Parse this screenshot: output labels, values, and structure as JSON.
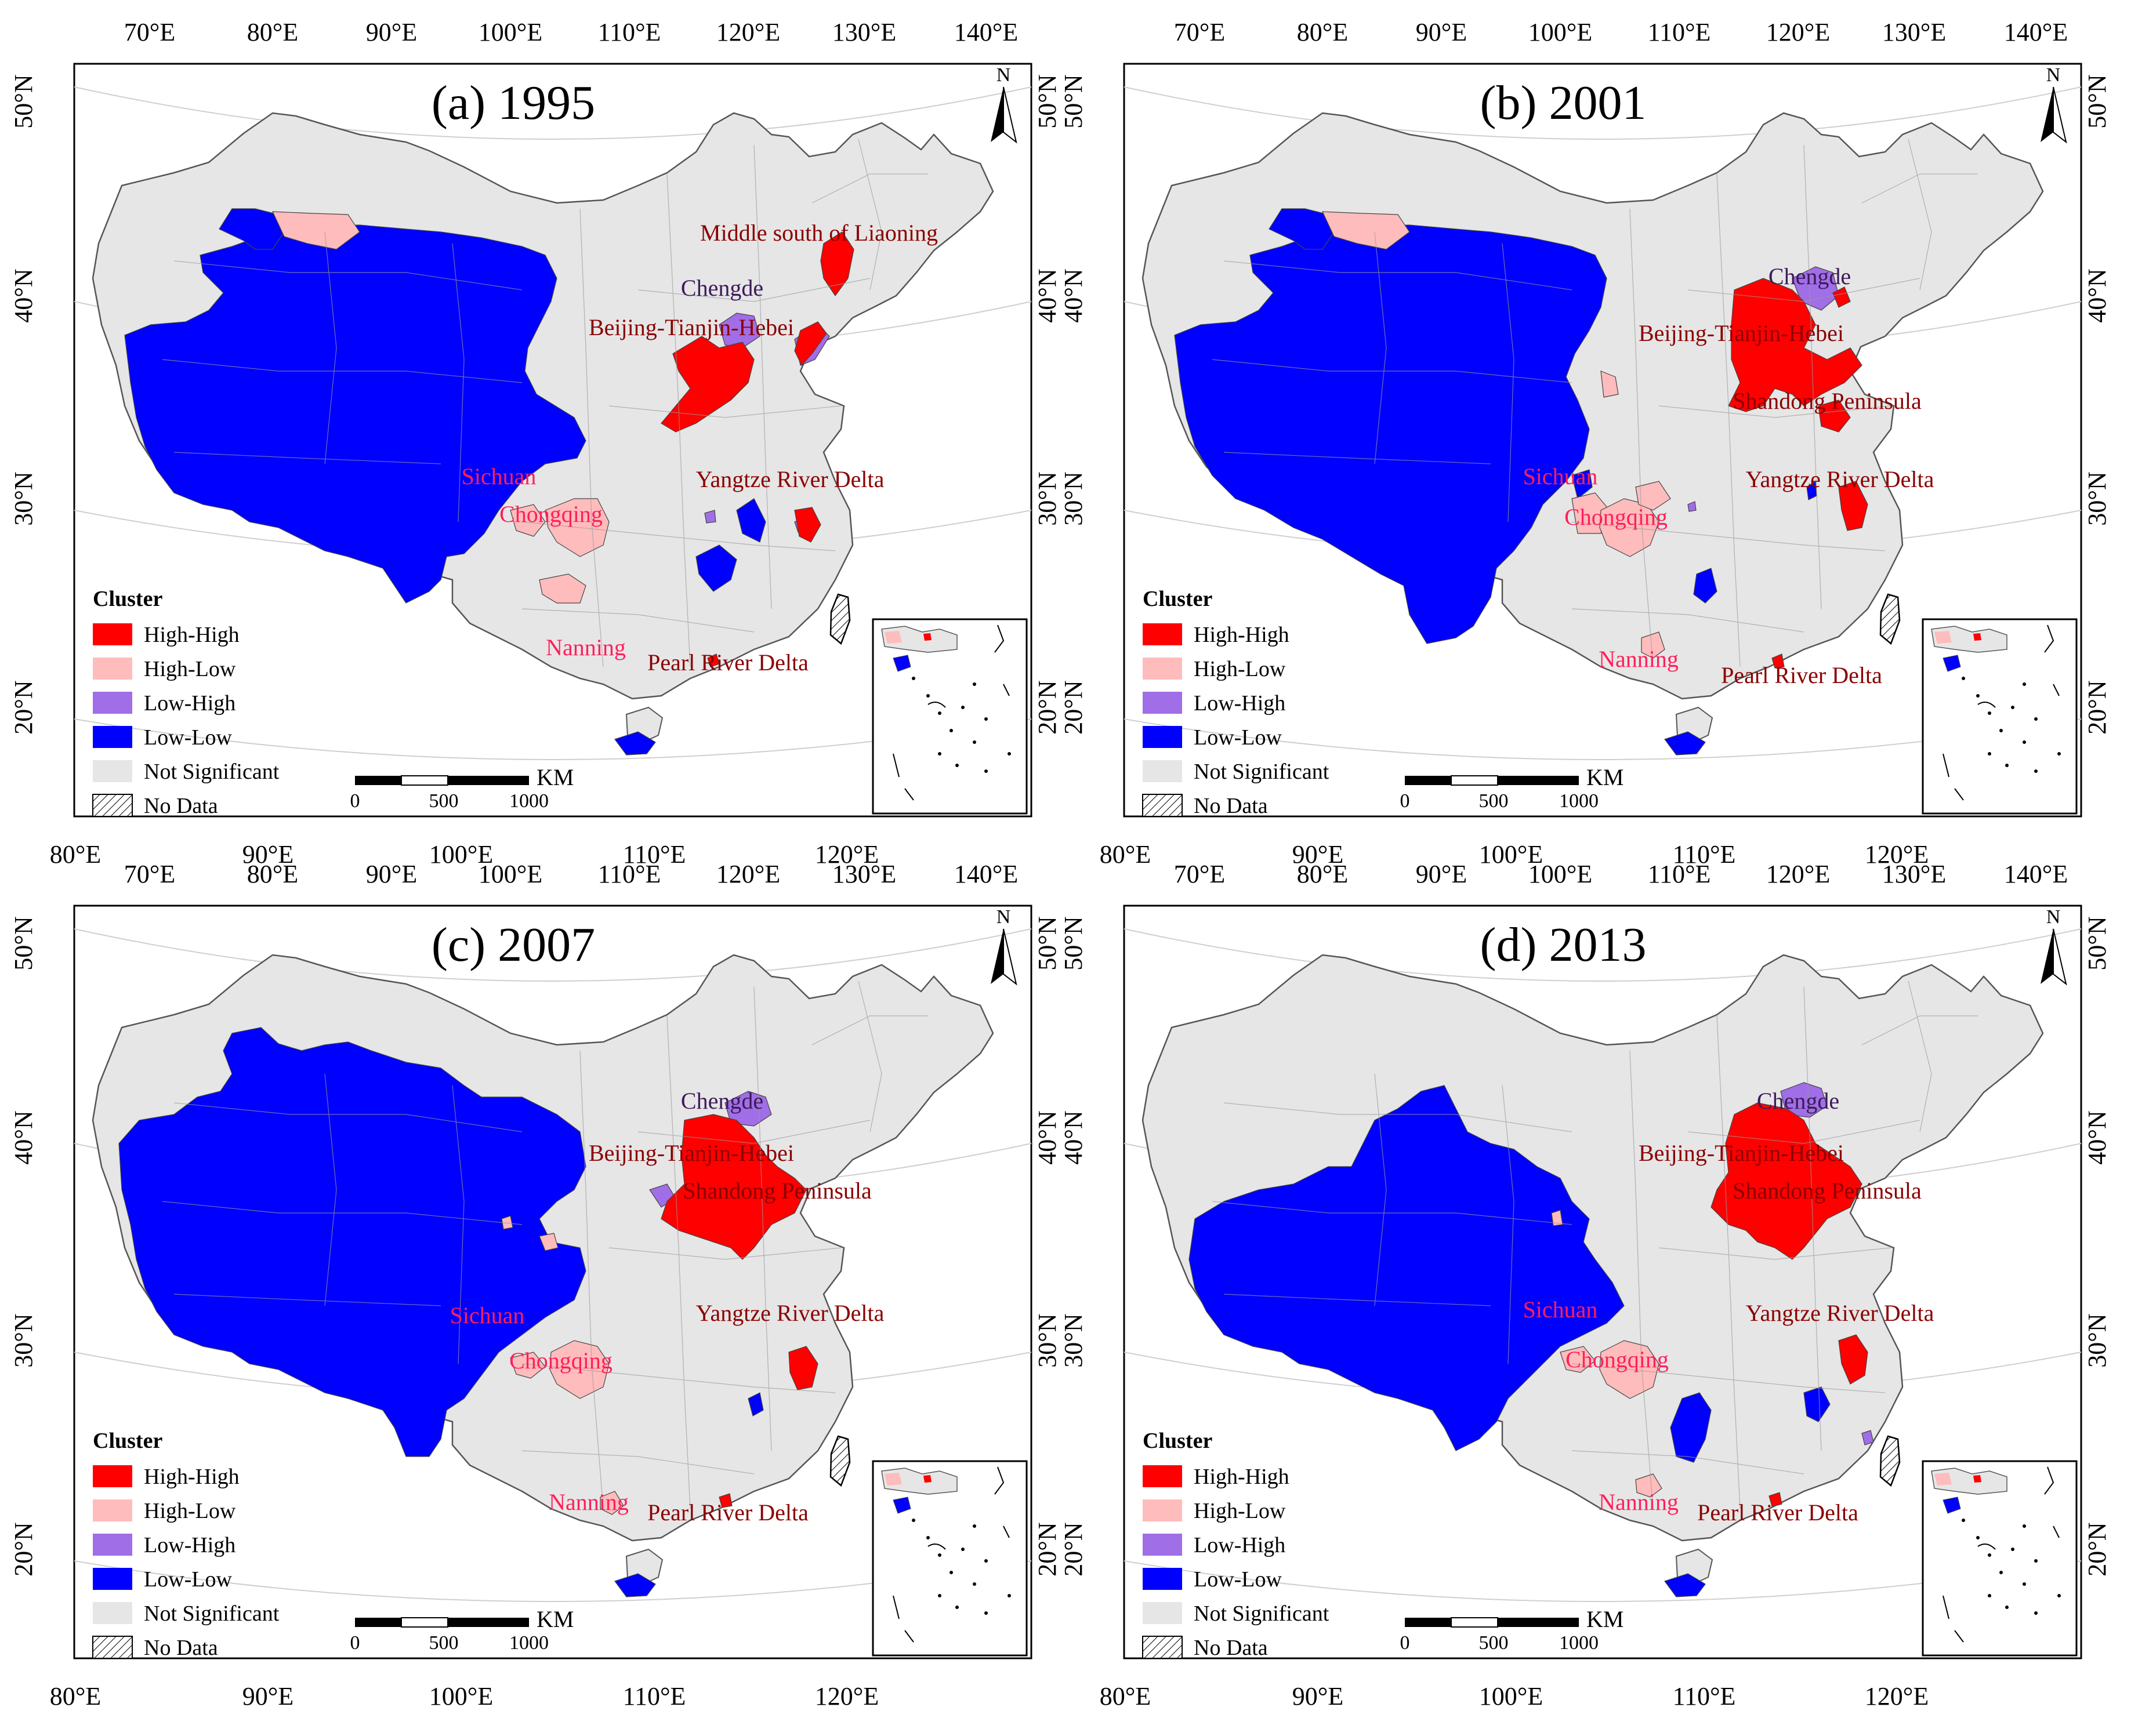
{
  "figure_title": "LISA cluster maps of China",
  "panels": [
    {
      "id": "a",
      "title": "(a) 1995",
      "labels": [
        {
          "key": "ms_liaoning",
          "text": "Middle south of Liaoning",
          "type": "hh"
        },
        {
          "key": "chengde",
          "text": "Chengde",
          "type": "lh"
        },
        {
          "key": "bth",
          "text": "Beijing-Tianjin-Hebei",
          "type": "hh"
        },
        {
          "key": "sichuan",
          "text": "Sichuan",
          "type": "hl"
        },
        {
          "key": "chongqing",
          "text": "Chongqing",
          "type": "hl"
        },
        {
          "key": "yrd",
          "text": "Yangtze River Delta",
          "type": "hh"
        },
        {
          "key": "nanning",
          "text": "Nanning",
          "type": "hl"
        },
        {
          "key": "prd",
          "text": "Pearl River Delta",
          "type": "hh"
        }
      ]
    },
    {
      "id": "b",
      "title": "(b) 2001",
      "labels": [
        {
          "key": "chengde",
          "text": "Chengde",
          "type": "lh"
        },
        {
          "key": "bth",
          "text": "Beijing-Tianjin-Hebei",
          "type": "hh"
        },
        {
          "key": "sp",
          "text": "Shandong Peninsula",
          "type": "hh"
        },
        {
          "key": "sichuan",
          "text": "Sichuan",
          "type": "hl"
        },
        {
          "key": "chongqing",
          "text": "Chongqing",
          "type": "hl"
        },
        {
          "key": "yrd",
          "text": "Yangtze River Delta",
          "type": "hh"
        },
        {
          "key": "nanning",
          "text": "Nanning",
          "type": "hl"
        },
        {
          "key": "prd",
          "text": "Pearl River Delta",
          "type": "hh"
        }
      ]
    },
    {
      "id": "c",
      "title": "(c) 2007",
      "labels": [
        {
          "key": "chengde",
          "text": "Chengde",
          "type": "lh"
        },
        {
          "key": "bth",
          "text": "Beijing-Tianjin-Hebei",
          "type": "hh"
        },
        {
          "key": "sp",
          "text": "Shandong Peninsula",
          "type": "hh"
        },
        {
          "key": "sichuan",
          "text": "Sichuan",
          "type": "hl"
        },
        {
          "key": "chongqing",
          "text": "Chongqing",
          "type": "hl"
        },
        {
          "key": "yrd",
          "text": "Yangtze River Delta",
          "type": "hh"
        },
        {
          "key": "nanning",
          "text": "Nanning",
          "type": "hl"
        },
        {
          "key": "prd",
          "text": "Pearl River Delta",
          "type": "hh"
        }
      ]
    },
    {
      "id": "d",
      "title": "(d) 2013",
      "labels": [
        {
          "key": "chengde",
          "text": "Chengde",
          "type": "lh"
        },
        {
          "key": "bth",
          "text": "Beijing-Tianjin-Hebei",
          "type": "hh"
        },
        {
          "key": "sp",
          "text": "Shandong Peninsula",
          "type": "hh"
        },
        {
          "key": "sichuan",
          "text": "Sichuan",
          "type": "hl"
        },
        {
          "key": "chongqing",
          "text": "Chongqing",
          "type": "hl"
        },
        {
          "key": "yrd",
          "text": "Yangtze River Delta",
          "type": "hh"
        },
        {
          "key": "nanning",
          "text": "Nanning",
          "type": "hl"
        },
        {
          "key": "prd",
          "text": "Pearl River Delta",
          "type": "hh"
        }
      ]
    }
  ],
  "axes": {
    "top_lon": [
      "70°E",
      "80°E",
      "90°E",
      "100°E",
      "110°E",
      "120°E",
      "130°E",
      "140°E"
    ],
    "bottom_lon": [
      "80°E",
      "90°E",
      "100°E",
      "110°E",
      "120°E"
    ],
    "lat": [
      "50°N",
      "40°N",
      "30°N",
      "20°N"
    ]
  },
  "legend": {
    "title": "Cluster",
    "items": [
      {
        "key": "hh",
        "label": "High-High",
        "color": "#ff0000"
      },
      {
        "key": "hl",
        "label": "High-Low",
        "color": "#ffbcbc"
      },
      {
        "key": "lh",
        "label": "Low-High",
        "color": "#a06ee6"
      },
      {
        "key": "ll",
        "label": "Low-Low",
        "color": "#0000ff"
      },
      {
        "key": "ns",
        "label": "Not Significant",
        "color": "#e6e6e6"
      },
      {
        "key": "nd",
        "label": "No Data",
        "color": "hatch"
      }
    ]
  },
  "scalebar": {
    "unit": "KM",
    "ticks": [
      "0",
      "500",
      "1000"
    ]
  },
  "north_arrow": "N",
  "colors": {
    "hh_label": "#8b0000",
    "hl_label": "#ff1f5a",
    "lh_label": "#3c1a5b",
    "boundary": "#9a9a9a"
  }
}
